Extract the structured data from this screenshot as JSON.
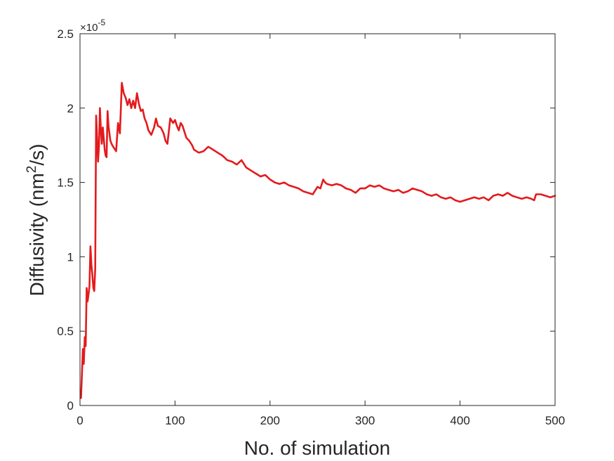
{
  "chart_data": {
    "type": "line",
    "title": "",
    "xlabel": "No. of simulation",
    "ylabel_main": "Diffusivity (nm",
    "ylabel_sup": "2",
    "ylabel_end": "/s)",
    "y_exponent_base": "×10",
    "y_exponent_power": "-5",
    "xlim": [
      0,
      500
    ],
    "ylim": [
      0,
      2.5
    ],
    "xticks": [
      0,
      100,
      200,
      300,
      400,
      500
    ],
    "xtick_labels": [
      "0",
      "100",
      "200",
      "300",
      "400",
      "500"
    ],
    "yticks": [
      0,
      0.5,
      1,
      1.5,
      2,
      2.5
    ],
    "ytick_labels": [
      "0",
      "0.5",
      "1",
      "1.5",
      "2",
      "2.5"
    ],
    "grid": false,
    "box": true,
    "series": [
      {
        "color": "#e41a1c",
        "x": [
          1,
          2,
          3,
          4,
          5,
          6,
          7,
          8,
          9,
          10,
          11,
          12,
          13,
          14,
          15,
          16,
          17,
          18,
          19,
          20,
          21,
          22,
          23,
          24,
          25,
          26,
          27,
          28,
          29,
          30,
          32,
          34,
          36,
          38,
          40,
          42,
          44,
          46,
          48,
          50,
          52,
          54,
          56,
          58,
          60,
          62,
          64,
          66,
          68,
          70,
          72,
          75,
          78,
          80,
          82,
          85,
          88,
          90,
          92,
          95,
          98,
          100,
          102,
          104,
          106,
          108,
          110,
          112,
          115,
          118,
          120,
          125,
          130,
          135,
          140,
          145,
          150,
          155,
          160,
          165,
          170,
          175,
          180,
          185,
          190,
          195,
          200,
          205,
          210,
          215,
          220,
          225,
          230,
          235,
          240,
          245,
          250,
          253,
          256,
          258,
          260,
          265,
          270,
          275,
          280,
          285,
          290,
          295,
          300,
          305,
          310,
          315,
          320,
          325,
          330,
          335,
          340,
          345,
          350,
          355,
          360,
          365,
          370,
          375,
          380,
          385,
          390,
          395,
          400,
          405,
          410,
          415,
          420,
          425,
          430,
          435,
          440,
          445,
          450,
          455,
          460,
          465,
          470,
          475,
          478,
          480,
          485,
          490,
          495,
          500
        ],
        "y": [
          0.05,
          0.2,
          0.38,
          0.28,
          0.46,
          0.4,
          0.79,
          0.7,
          0.75,
          0.8,
          1.07,
          0.95,
          0.88,
          0.79,
          0.77,
          0.92,
          1.95,
          1.8,
          1.64,
          1.75,
          2.0,
          1.85,
          1.76,
          1.87,
          1.8,
          1.72,
          1.68,
          1.67,
          1.98,
          1.88,
          1.78,
          1.75,
          1.73,
          1.71,
          1.9,
          1.83,
          2.17,
          2.1,
          2.07,
          2.02,
          2.06,
          2.0,
          2.05,
          2.0,
          2.1,
          2.03,
          1.98,
          1.99,
          1.93,
          1.9,
          1.85,
          1.82,
          1.87,
          1.93,
          1.88,
          1.87,
          1.83,
          1.78,
          1.76,
          1.93,
          1.9,
          1.92,
          1.88,
          1.85,
          1.9,
          1.88,
          1.84,
          1.8,
          1.78,
          1.75,
          1.72,
          1.7,
          1.71,
          1.74,
          1.72,
          1.7,
          1.68,
          1.65,
          1.64,
          1.62,
          1.65,
          1.6,
          1.58,
          1.56,
          1.54,
          1.55,
          1.52,
          1.5,
          1.49,
          1.5,
          1.48,
          1.47,
          1.46,
          1.44,
          1.43,
          1.42,
          1.47,
          1.46,
          1.52,
          1.5,
          1.49,
          1.48,
          1.49,
          1.48,
          1.46,
          1.45,
          1.43,
          1.46,
          1.46,
          1.48,
          1.47,
          1.48,
          1.46,
          1.45,
          1.44,
          1.45,
          1.43,
          1.44,
          1.46,
          1.45,
          1.44,
          1.42,
          1.41,
          1.42,
          1.4,
          1.39,
          1.4,
          1.38,
          1.37,
          1.38,
          1.39,
          1.4,
          1.39,
          1.4,
          1.38,
          1.41,
          1.42,
          1.41,
          1.43,
          1.41,
          1.4,
          1.39,
          1.4,
          1.39,
          1.38,
          1.42,
          1.42,
          1.41,
          1.4,
          1.41
        ]
      }
    ]
  }
}
